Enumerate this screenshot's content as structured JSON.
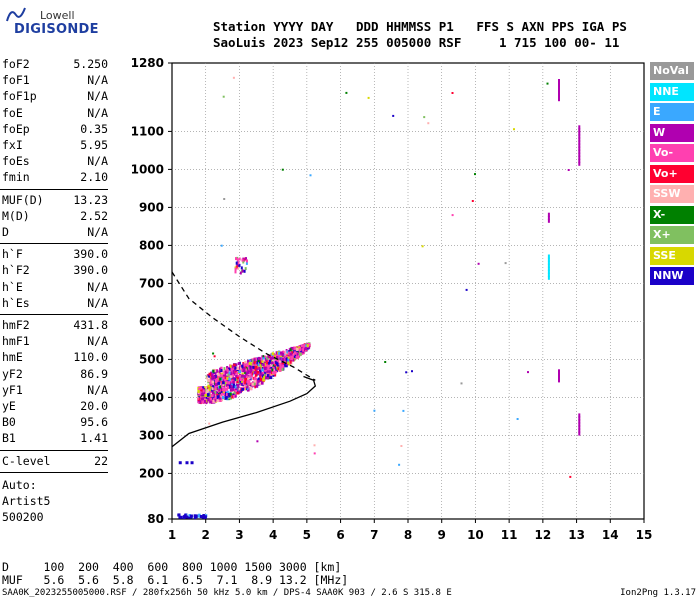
{
  "logo": {
    "top": "Lowell",
    "bottom": "DIGISONDE"
  },
  "header": {
    "line1": "Station YYYY DAY   DDD HHMMSS P1   FFS S AXN PPS IGA PS",
    "line2": "SaoLuis 2023 Sep12 255 005000 RSF     1 715 100 00- 11"
  },
  "params": [
    {
      "name": "foF2",
      "value": "5.250"
    },
    {
      "name": "foF1",
      "value": "N/A"
    },
    {
      "name": "foF1p",
      "value": "N/A"
    },
    {
      "name": "foE",
      "value": "N/A"
    },
    {
      "name": "foEp",
      "value": "0.35"
    },
    {
      "name": "fxI",
      "value": "5.95"
    },
    {
      "name": "foEs",
      "value": "N/A"
    },
    {
      "name": "fmin",
      "value": "2.10"
    },
    {
      "name": "MUF(D)",
      "value": "13.23"
    },
    {
      "name": "M(D)",
      "value": "2.52"
    },
    {
      "name": "D",
      "value": "N/A"
    },
    {
      "name": "h`F",
      "value": "390.0"
    },
    {
      "name": "h`F2",
      "value": "390.0"
    },
    {
      "name": "h`E",
      "value": "N/A"
    },
    {
      "name": "h`Es",
      "value": "N/A"
    },
    {
      "name": "hmF2",
      "value": "431.8"
    },
    {
      "name": "hmF1",
      "value": "N/A"
    },
    {
      "name": "hmE",
      "value": "110.0"
    },
    {
      "name": "yF2",
      "value": "86.9"
    },
    {
      "name": "yF1",
      "value": "N/A"
    },
    {
      "name": "yE",
      "value": "20.0"
    },
    {
      "name": "B0",
      "value": "95.6"
    },
    {
      "name": "B1",
      "value": "1.41"
    },
    {
      "name": "C-level",
      "value": "22"
    }
  ],
  "auto": {
    "line1": "Auto:",
    "line2": "Artist5",
    "line3": "500200"
  },
  "legend": [
    {
      "label": "NoVal",
      "color": "#999999"
    },
    {
      "label": "NNE",
      "color": "#00e5ff"
    },
    {
      "label": "E",
      "color": "#3aa8ff"
    },
    {
      "label": "W",
      "color": "#b000b0"
    },
    {
      "label": "Vo-",
      "color": "#ff40b0"
    },
    {
      "label": "Vo+",
      "color": "#ff0030"
    },
    {
      "label": "SSW",
      "color": "#ffb0b0"
    },
    {
      "label": "X-",
      "color": "#008000"
    },
    {
      "label": "X+",
      "color": "#80c060"
    },
    {
      "label": "SSE",
      "color": "#d8d800"
    },
    {
      "label": "NNW",
      "color": "#1a00c8"
    }
  ],
  "bottom": {
    "line1": "D     100  200  400  600  800 1000 1500 3000 [km]",
    "line2": "MUF   5.6  5.6  5.8  6.1  6.5  7.1  8.9 13.2 [MHz]",
    "footer": "SAA0K_2023255005000.RSF / 280fx256h 50 kHz 5.0 km / DPS-4 SAA0K 903 / 2.6 S 315.8 E",
    "version": "Ion2Png 1.3.17"
  },
  "chart_data": {
    "type": "scatter",
    "xlim": [
      1,
      15
    ],
    "ylim": [
      80,
      1280
    ],
    "xticks": [
      1,
      2,
      3,
      4,
      5,
      6,
      7,
      8,
      9,
      10,
      11,
      12,
      13,
      14,
      15
    ],
    "yticks": [
      80,
      200,
      300,
      400,
      500,
      600,
      700,
      800,
      900,
      1000,
      1100,
      1280
    ],
    "grid": true,
    "clusters": [
      {
        "desc": "F trace",
        "x_from": 1.7,
        "x_to": 8.2,
        "y_from": 380,
        "y_to": 700
      },
      {
        "desc": "low echoes",
        "x_from": 1.1,
        "x_to": 2.0,
        "y_from": 85,
        "y_to": 95
      }
    ],
    "profile_solid": [
      [
        1.0,
        270
      ],
      [
        1.5,
        305
      ],
      [
        2.5,
        335
      ],
      [
        3.5,
        360
      ],
      [
        4.5,
        390
      ],
      [
        5.0,
        410
      ],
      [
        5.25,
        430
      ],
      [
        5.2,
        445
      ],
      [
        4.9,
        455
      ]
    ],
    "profile_dashed": [
      [
        1.0,
        730
      ],
      [
        1.5,
        660
      ],
      [
        2.2,
        610
      ],
      [
        3.0,
        560
      ],
      [
        3.8,
        515
      ],
      [
        4.6,
        480
      ],
      [
        5.25,
        445
      ]
    ],
    "vertical_streaks": [
      {
        "x": 12.15,
        "y_from": 720,
        "y_to": 780,
        "color": "#00e5ff"
      },
      {
        "x": 12.45,
        "y_from": 1190,
        "y_to": 1240,
        "color": "#b000b0"
      },
      {
        "x": 13.05,
        "y_from": 1020,
        "y_to": 1120,
        "color": "#b000b0"
      },
      {
        "x": 13.05,
        "y_from": 310,
        "y_to": 360,
        "color": "#b000b0"
      },
      {
        "x": 12.45,
        "y_from": 450,
        "y_to": 480,
        "color": "#b000b0"
      },
      {
        "x": 12.15,
        "y_from": 870,
        "y_to": 890,
        "color": "#b000b0"
      }
    ]
  }
}
